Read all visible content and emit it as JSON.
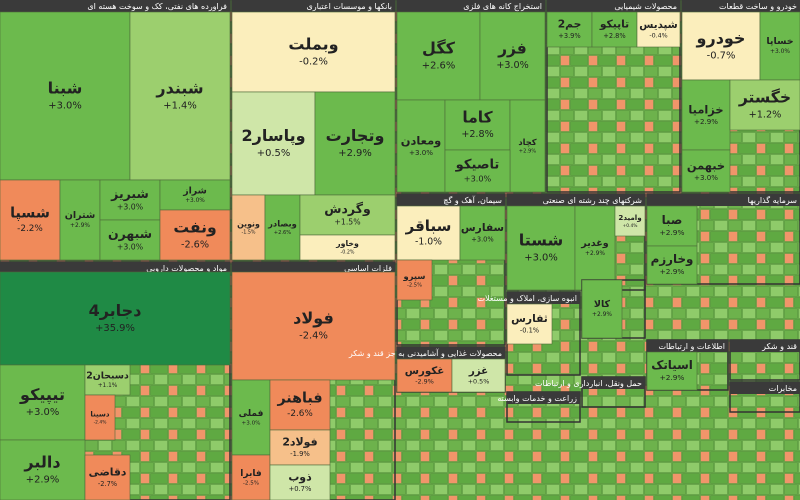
{
  "chart_data": {
    "type": "treemap",
    "groups": [
      {
        "name": "فراورده های نفتی، کک و سوخت هسته ای",
        "categories": [
          "شبنا",
          "شبندر",
          "شسپا",
          "شتران",
          "شبریز",
          "شبهرن",
          "شراز",
          "ونفت"
        ],
        "values": [
          3.0,
          1.4,
          -2.2,
          2.9,
          3.0,
          3.0,
          3.0,
          -2.6
        ],
        "value_labels": [
          "+3.0%",
          "+1.4%",
          "-2.2%",
          "+2.9%",
          "+3.0%",
          "+3.0%",
          "+3.0%",
          "-2.6%"
        ]
      },
      {
        "name": "بانکها و موسسات اعتباری",
        "categories": [
          "وبملت",
          "وپاسار2",
          "وتجارت",
          "ونوین",
          "وبصادر",
          "وگردش",
          "وخاور"
        ],
        "values": [
          -0.2,
          0.5,
          2.9,
          -1.5,
          2.6,
          1.5,
          -0.2
        ],
        "value_labels": [
          "-0.2%",
          "+0.5%",
          "+2.9%",
          "-1.5%",
          "+2.6%",
          "+1.5%",
          "-0.2%"
        ]
      },
      {
        "name": "استخراج کانه های فلزی",
        "categories": [
          "کگل",
          "فزر",
          "ومعادن",
          "کاما",
          "کچاد",
          "تاصیکو"
        ],
        "values": [
          2.6,
          3.0,
          3.0,
          2.8,
          2.9,
          3.0
        ],
        "value_labels": [
          "+2.6%",
          "+3.0%",
          "+3.0%",
          "+2.8%",
          "+2.9%",
          "+3.0%"
        ]
      },
      {
        "name": "محصولات شیمیایی",
        "categories": [
          "جم2",
          "تاپیکو",
          "شپدیس"
        ],
        "values": [
          3.9,
          2.8,
          -0.4
        ],
        "value_labels": [
          "+3.9%",
          "+2.8%",
          "-0.4%"
        ]
      },
      {
        "name": "خودرو و ساخت قطعات",
        "categories": [
          "خودرو",
          "خساپا",
          "خزامیا",
          "خگستر",
          "خبهمن"
        ],
        "values": [
          -0.7,
          3.0,
          2.9,
          1.2,
          3.0
        ],
        "value_labels": [
          "-0.7%",
          "+3.0%",
          "+2.9%",
          "+1.2%",
          "+3.0%"
        ]
      },
      {
        "name": "مواد و محصولات دارویی",
        "categories": [
          "دجابر4",
          "تیپیکو",
          "دالبر",
          "دسبحان2",
          "دسینا",
          "دقاضی"
        ],
        "values": [
          35.9,
          3.0,
          2.9,
          1.1,
          -2.4,
          -2.7
        ],
        "value_labels": [
          "+35.9%",
          "+3.0%",
          "+2.9%",
          "+1.1%",
          "-2.4%",
          "-2.7%"
        ]
      },
      {
        "name": "فلزات اساسی",
        "categories": [
          "فولاد",
          "فملی",
          "فابرا",
          "فباهنر",
          "فولاد2",
          "ذوب"
        ],
        "values": [
          -2.4,
          3.0,
          -2.5,
          -2.6,
          -1.9,
          0.7
        ],
        "value_labels": [
          "-2.4%",
          "+3.0%",
          "-2.5%",
          "-2.6%",
          "-1.9%",
          "+0.7%"
        ]
      },
      {
        "name": "سیمان، آهک و گچ",
        "categories": [
          "سباقر",
          "سفارس",
          "سپرو"
        ],
        "values": [
          -1.0,
          3.0,
          -2.5
        ],
        "value_labels": [
          "-1.0%",
          "+3.0%",
          "-2.5%"
        ]
      },
      {
        "name": "شرکتهای چند رشته ای صنعتی",
        "categories": [
          "شستا",
          "وغدیر",
          "وامید2"
        ],
        "values": [
          3.0,
          2.9,
          0.4
        ],
        "value_labels": [
          "+3.0%",
          "+2.9%",
          "+0.4%"
        ]
      },
      {
        "name": "سرمایه گذاریها",
        "categories": [
          "صبا",
          "وخارزم"
        ],
        "values": [
          2.9,
          2.9
        ],
        "value_labels": [
          "+2.9%",
          "+2.9%"
        ]
      },
      {
        "name": "محصولات غذایی و آشامیدنی به جز قند و شکر",
        "categories": [
          "غکورس",
          "غزر"
        ],
        "values": [
          -2.9,
          0.5
        ],
        "value_labels": [
          "-2.9%",
          "+0.5%"
        ]
      },
      {
        "name": "انبوه سازی، املاک و مستغلات",
        "categories": [
          "ثفارس"
        ],
        "values": [
          -0.1
        ],
        "value_labels": [
          "-0.1%"
        ]
      },
      {
        "categories": [
          "کالا"
        ],
        "values": [
          2.9
        ],
        "value_labels": [
          "+2.9%"
        ]
      },
      {
        "name": "اطلاعات و ارتباطات",
        "categories": [
          "اسیاتک"
        ],
        "values": [
          2.9
        ],
        "value_labels": [
          "+2.9%"
        ]
      },
      {
        "name": "زراعت و خدمات وابسته",
        "categories": [],
        "values": [],
        "value_labels": []
      },
      {
        "name": "حمل ونقل، انبارداری و ارتباطات",
        "categories": [],
        "values": [],
        "value_labels": []
      },
      {
        "name": "قند و شکر",
        "categories": [],
        "values": [],
        "value_labels": []
      },
      {
        "name": "مخابرات",
        "categories": [],
        "values": [],
        "value_labels": []
      }
    ]
  }
}
